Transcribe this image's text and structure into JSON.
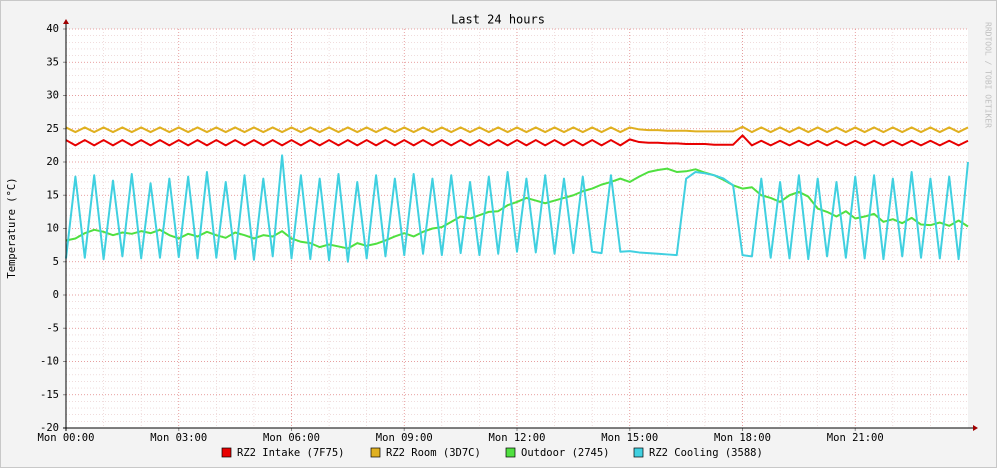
{
  "chart_data": {
    "type": "line",
    "title": "Last 24 hours",
    "y_label": "Temperature (°C)",
    "watermark": "RRDTOOL / TOBI OETIKER",
    "xlim": [
      0,
      24
    ],
    "ylim": [
      -20,
      40
    ],
    "yticks": [
      -20,
      -15,
      -10,
      -5,
      0,
      5,
      10,
      15,
      20,
      25,
      30,
      35,
      40
    ],
    "xticks": [
      {
        "value": 0,
        "label": "Mon 00:00"
      },
      {
        "value": 3,
        "label": "Mon 03:00"
      },
      {
        "value": 6,
        "label": "Mon 06:00"
      },
      {
        "value": 9,
        "label": "Mon 09:00"
      },
      {
        "value": 12,
        "label": "Mon 12:00"
      },
      {
        "value": 15,
        "label": "Mon 15:00"
      },
      {
        "value": 18,
        "label": "Mon 18:00"
      },
      {
        "value": 21,
        "label": "Mon 21:00"
      }
    ],
    "grid": true,
    "x": [
      0,
      0.25,
      0.5,
      0.75,
      1,
      1.25,
      1.5,
      1.75,
      2,
      2.25,
      2.5,
      2.75,
      3,
      3.25,
      3.5,
      3.75,
      4,
      4.25,
      4.5,
      4.75,
      5,
      5.25,
      5.5,
      5.75,
      6,
      6.25,
      6.5,
      6.75,
      7,
      7.25,
      7.5,
      7.75,
      8,
      8.25,
      8.5,
      8.75,
      9,
      9.25,
      9.5,
      9.75,
      10,
      10.25,
      10.5,
      10.75,
      11,
      11.25,
      11.5,
      11.75,
      12,
      12.25,
      12.5,
      12.75,
      13,
      13.25,
      13.5,
      13.75,
      14,
      14.25,
      14.5,
      14.75,
      15,
      15.25,
      15.5,
      15.75,
      16,
      16.25,
      16.5,
      16.75,
      17,
      17.25,
      17.5,
      17.75,
      18,
      18.25,
      18.5,
      18.75,
      19,
      19.25,
      19.5,
      19.75,
      20,
      20.25,
      20.5,
      20.75,
      21,
      21.25,
      21.5,
      21.75,
      22,
      22.25,
      22.5,
      22.75,
      23,
      23.25,
      23.5,
      23.75,
      24
    ],
    "series": [
      {
        "name": "RZ2 Intake (7F75)",
        "color": "#e80000",
        "values": [
          23.3,
          22.5,
          23.3,
          22.5,
          23.3,
          22.5,
          23.3,
          22.5,
          23.3,
          22.5,
          23.3,
          22.5,
          23.3,
          22.5,
          23.3,
          22.5,
          23.3,
          22.5,
          23.3,
          22.5,
          23.3,
          22.5,
          23.3,
          22.5,
          23.3,
          22.5,
          23.3,
          22.5,
          23.3,
          22.5,
          23.3,
          22.5,
          23.3,
          22.5,
          23.3,
          22.5,
          23.3,
          22.5,
          23.3,
          22.5,
          23.3,
          22.5,
          23.3,
          22.5,
          23.3,
          22.5,
          23.3,
          22.5,
          23.3,
          22.5,
          23.3,
          22.5,
          23.3,
          22.5,
          23.3,
          22.5,
          23.3,
          22.5,
          23.3,
          22.5,
          23.4,
          23.0,
          22.9,
          22.9,
          22.8,
          22.8,
          22.7,
          22.7,
          22.7,
          22.6,
          22.6,
          22.6,
          24.0,
          22.5,
          23.2,
          22.5,
          23.2,
          22.5,
          23.2,
          22.5,
          23.2,
          22.5,
          23.2,
          22.5,
          23.2,
          22.5,
          23.2,
          22.5,
          23.2,
          22.5,
          23.2,
          22.5,
          23.2,
          22.5,
          23.2,
          22.5,
          23.2
        ]
      },
      {
        "name": "RZ2 Room (3D7C)",
        "color": "#e0b020",
        "values": [
          25.2,
          24.5,
          25.2,
          24.5,
          25.2,
          24.5,
          25.2,
          24.5,
          25.2,
          24.5,
          25.2,
          24.5,
          25.2,
          24.5,
          25.2,
          24.5,
          25.2,
          24.5,
          25.2,
          24.5,
          25.2,
          24.5,
          25.2,
          24.5,
          25.2,
          24.5,
          25.2,
          24.5,
          25.2,
          24.5,
          25.2,
          24.5,
          25.2,
          24.5,
          25.2,
          24.5,
          25.2,
          24.5,
          25.2,
          24.5,
          25.2,
          24.5,
          25.2,
          24.5,
          25.2,
          24.5,
          25.2,
          24.5,
          25.2,
          24.5,
          25.2,
          24.5,
          25.2,
          24.5,
          25.2,
          24.5,
          25.2,
          24.5,
          25.2,
          24.5,
          25.2,
          24.9,
          24.8,
          24.8,
          24.7,
          24.7,
          24.7,
          24.6,
          24.6,
          24.6,
          24.6,
          24.6,
          25.3,
          24.5,
          25.2,
          24.5,
          25.2,
          24.5,
          25.2,
          24.5,
          25.2,
          24.5,
          25.2,
          24.5,
          25.2,
          24.5,
          25.2,
          24.5,
          25.2,
          24.5,
          25.2,
          24.5,
          25.2,
          24.5,
          25.2,
          24.5,
          25.2
        ]
      },
      {
        "name": "Outdoor (2745)",
        "color": "#50e040",
        "values": [
          8.2,
          8.5,
          9.3,
          9.8,
          9.5,
          9.0,
          9.4,
          9.2,
          9.6,
          9.3,
          9.8,
          9.0,
          8.5,
          9.2,
          8.8,
          9.5,
          9.0,
          8.6,
          9.4,
          9.0,
          8.5,
          9.0,
          8.8,
          9.6,
          8.5,
          8.0,
          7.8,
          7.2,
          7.6,
          7.3,
          7.0,
          7.8,
          7.4,
          7.7,
          8.2,
          8.8,
          9.3,
          8.8,
          9.5,
          10.0,
          10.2,
          11.0,
          11.8,
          11.5,
          12.0,
          12.5,
          12.6,
          13.5,
          14.0,
          14.6,
          14.2,
          13.8,
          14.2,
          14.6,
          15.0,
          15.6,
          16.0,
          16.6,
          17.0,
          17.5,
          17.0,
          17.8,
          18.5,
          18.8,
          19.0,
          18.5,
          18.6,
          18.9,
          18.4,
          18.0,
          17.3,
          16.5,
          16.0,
          16.2,
          15.0,
          14.6,
          14.0,
          15.0,
          15.5,
          14.8,
          13.0,
          12.5,
          11.8,
          12.6,
          11.5,
          11.8,
          12.2,
          11.0,
          11.4,
          10.8,
          11.6,
          10.6,
          10.5,
          10.9,
          10.4,
          11.2,
          10.3
        ]
      },
      {
        "name": "RZ2 Cooling (3588)",
        "color": "#40d0e0",
        "values": [
          5.5,
          17.8,
          5.6,
          18.0,
          5.4,
          17.2,
          5.8,
          18.2,
          5.5,
          16.8,
          5.6,
          17.5,
          5.7,
          17.8,
          5.5,
          18.5,
          5.6,
          17.0,
          5.4,
          18.0,
          5.3,
          17.5,
          5.8,
          21.0,
          5.5,
          18.0,
          5.4,
          17.5,
          5.2,
          18.2,
          5.0,
          17.0,
          5.5,
          18.0,
          5.8,
          17.5,
          6.0,
          18.2,
          6.2,
          17.5,
          6.0,
          18.0,
          6.3,
          17.0,
          6.0,
          17.8,
          6.2,
          18.5,
          6.5,
          17.5,
          6.4,
          18.0,
          6.2,
          17.5,
          6.3,
          17.8,
          6.5,
          6.3,
          18.0,
          6.5,
          6.6,
          6.4,
          6.3,
          6.2,
          6.1,
          6.0,
          17.5,
          18.5,
          18.3,
          18.0,
          17.5,
          16.5,
          6.0,
          5.8,
          17.5,
          5.6,
          17.0,
          5.5,
          18.0,
          5.4,
          17.5,
          5.8,
          17.0,
          5.6,
          17.8,
          5.5,
          18.0,
          5.4,
          17.5,
          5.8,
          18.5,
          5.6,
          17.5,
          5.5,
          17.8,
          5.4,
          20.0
        ]
      }
    ]
  }
}
